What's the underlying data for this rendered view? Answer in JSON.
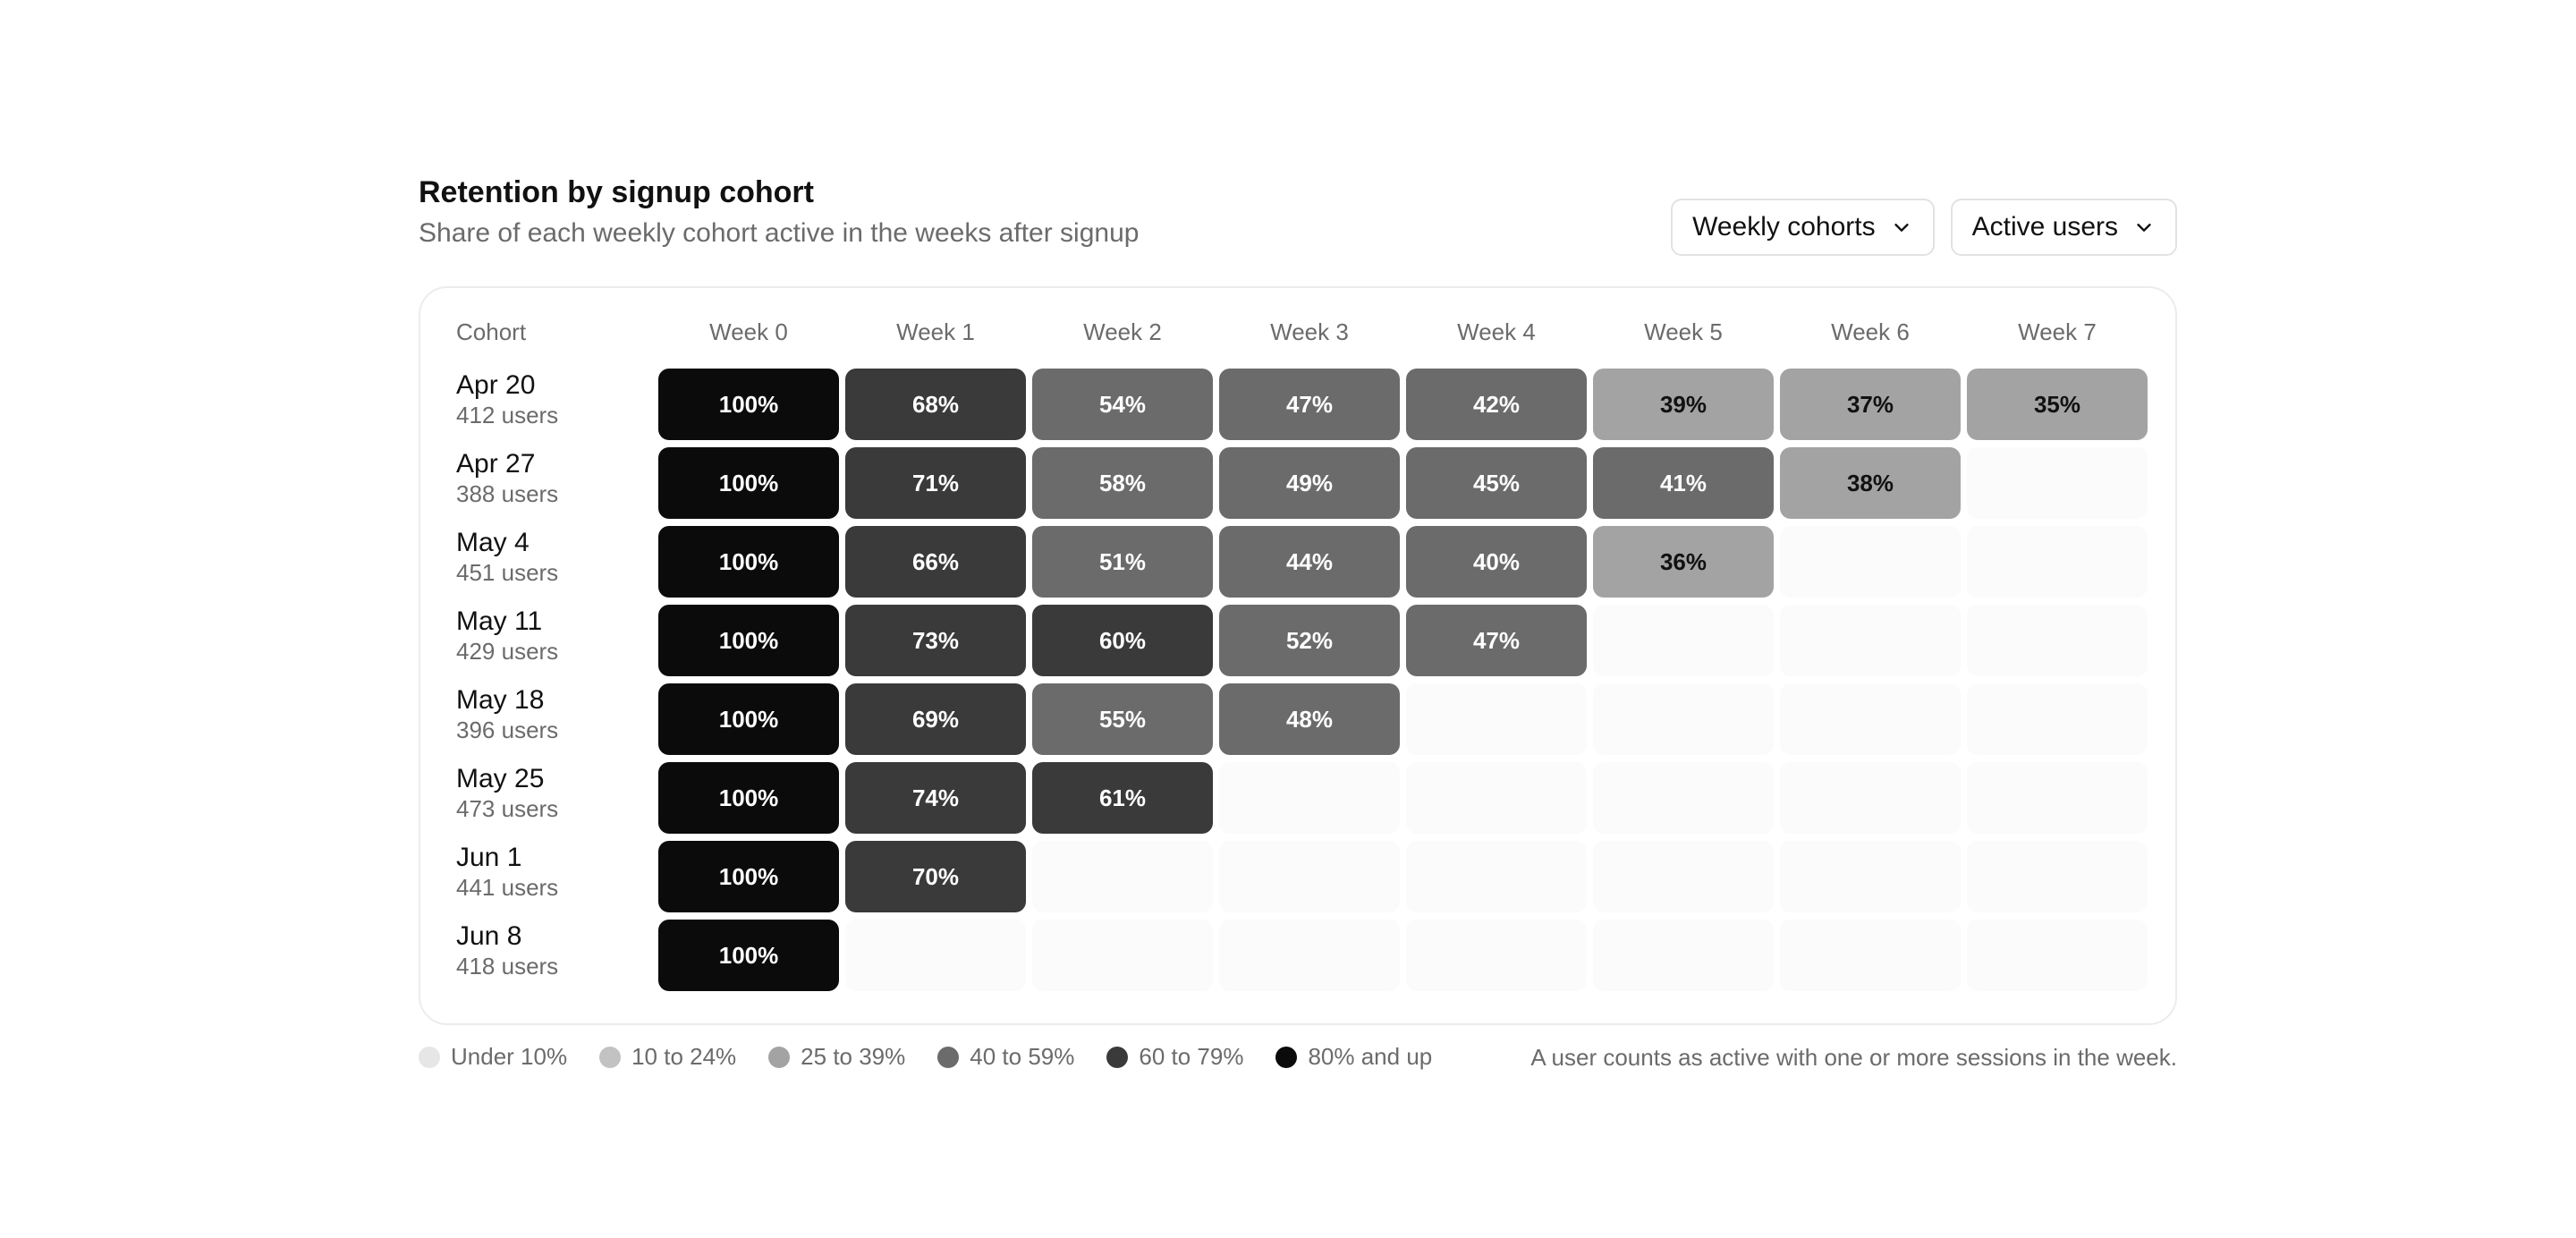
{
  "header": {
    "title": "Retention by signup cohort",
    "subtitle": "Share of each weekly cohort active in the weeks after signup"
  },
  "controls": {
    "cohort_dropdown": "Weekly cohorts",
    "metric_dropdown": "Active users"
  },
  "chart_data": {
    "type": "heatmap",
    "title": "Retention by signup cohort",
    "subtitle": "Share of each weekly cohort active in the weeks after signup",
    "row_header": "Cohort",
    "columns": [
      "Week 0",
      "Week 1",
      "Week 2",
      "Week 3",
      "Week 4",
      "Week 5",
      "Week 6",
      "Week 7"
    ],
    "rows": [
      {
        "cohort": "Apr 20",
        "users": "412 users",
        "values": [
          100,
          68,
          54,
          47,
          42,
          39,
          37,
          35
        ]
      },
      {
        "cohort": "Apr 27",
        "users": "388 users",
        "values": [
          100,
          71,
          58,
          49,
          45,
          41,
          38
        ]
      },
      {
        "cohort": "May 4",
        "users": "451 users",
        "values": [
          100,
          66,
          51,
          44,
          40,
          36
        ]
      },
      {
        "cohort": "May 11",
        "users": "429 users",
        "values": [
          100,
          73,
          60,
          52,
          47
        ]
      },
      {
        "cohort": "May 18",
        "users": "396 users",
        "values": [
          100,
          69,
          55,
          48
        ]
      },
      {
        "cohort": "May 25",
        "users": "473 users",
        "values": [
          100,
          74,
          61
        ]
      },
      {
        "cohort": "Jun 1",
        "users": "441 users",
        "values": [
          100,
          70
        ]
      },
      {
        "cohort": "Jun 8",
        "users": "418 users",
        "values": [
          100
        ]
      }
    ],
    "value_suffix": "%",
    "legend": [
      {
        "label": "Under 10%",
        "min": 0,
        "color": "#e6e6e6",
        "text_color": "#111111"
      },
      {
        "label": "10 to 24%",
        "min": 10,
        "color": "#c2c2c2",
        "text_color": "#111111"
      },
      {
        "label": "25 to 39%",
        "min": 25,
        "color": "#a3a3a3",
        "text_color": "#111111"
      },
      {
        "label": "40 to 59%",
        "min": 40,
        "color": "#6b6b6b",
        "text_color": "#ffffff"
      },
      {
        "label": "60 to 79%",
        "min": 60,
        "color": "#3a3a3a",
        "text_color": "#ffffff"
      },
      {
        "label": "80% and up",
        "min": 80,
        "color": "#0b0b0b",
        "text_color": "#ffffff"
      }
    ],
    "legend_placement": "bottom-left"
  },
  "footnote": "A user counts as active with one or more sessions in the week."
}
